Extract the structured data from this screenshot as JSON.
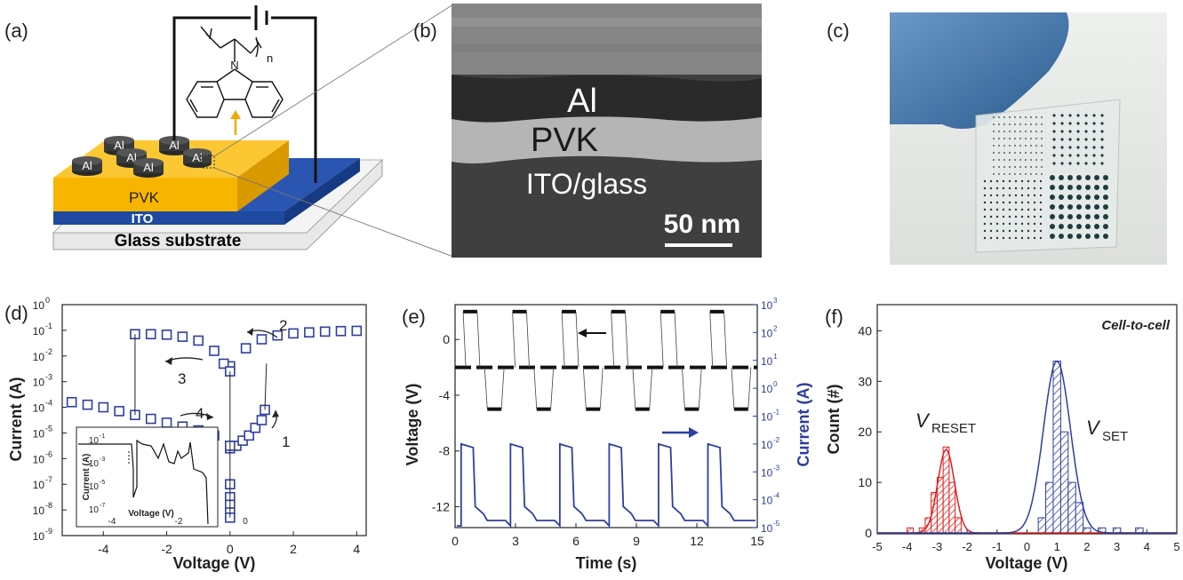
{
  "panels": {
    "a": {
      "label": "(a)",
      "layers": {
        "top_electrode": "Al",
        "active": "PVK",
        "bottom_electrode": "ITO",
        "substrate": "Glass substrate"
      },
      "polymer_subscript": "n",
      "polymer_heteroatom": "N",
      "colors": {
        "pvk": "#f7b500",
        "ito": "#1e4aa0",
        "glass": "#e8e8e8",
        "al": "#3a3a3a",
        "arrow": "#f2a900"
      }
    },
    "b": {
      "label": "(b)",
      "layers": [
        "Al",
        "PVK",
        "ITO/glass"
      ],
      "scale_bar": "50 nm"
    },
    "c": {
      "label": "(c)"
    },
    "d": {
      "label": "(d)",
      "xlabel": "Voltage (V)",
      "ylabel": "Current (A)",
      "xticks": [
        "-4",
        "-2",
        "0",
        "2",
        "4"
      ],
      "yticks": [
        "10",
        "10",
        "10",
        "10",
        "10",
        "10",
        "10",
        "10",
        "10",
        "10"
      ],
      "yexps": [
        "0",
        "-1",
        "-2",
        "-3",
        "-4",
        "-5",
        "-6",
        "-7",
        "-8",
        "-9"
      ],
      "annotations": [
        "1",
        "2",
        "3",
        "4"
      ],
      "inset": {
        "xlabel": "Voltage (V)",
        "ylabel": "Current (A)",
        "xticks": [
          "-4",
          "-2",
          "0"
        ],
        "yticks": [
          "10",
          "10",
          "10",
          "10"
        ],
        "yexps": [
          "-1",
          "-3",
          "-5",
          "-7"
        ]
      }
    },
    "e": {
      "label": "(e)",
      "xlabel": "Time (s)",
      "ylabel_left": "Voltage (V)",
      "ylabel_right": "Current (A)",
      "xticks": [
        "0",
        "3",
        "6",
        "9",
        "12",
        "15"
      ],
      "yticks_left": [
        "0",
        "-4",
        "-8",
        "-12"
      ],
      "yticks_right_base": [
        "10",
        "10",
        "10",
        "10",
        "10",
        "10",
        "10",
        "10",
        "10"
      ],
      "yticks_right_exp": [
        "3",
        "2",
        "1",
        "0",
        "-1",
        "-2",
        "-3",
        "-4",
        "-5"
      ],
      "colors": {
        "current": "#2e3f9e",
        "voltage": "#000000"
      }
    },
    "f": {
      "label": "(f)",
      "title": "Cell-to-cell",
      "xlabel": "Voltage (V)",
      "ylabel": "Count (#)",
      "xticks": [
        "-5",
        "-4",
        "-3",
        "-2",
        "-1",
        "0",
        "1",
        "2",
        "3",
        "4",
        "5"
      ],
      "yticks": [
        "0",
        "10",
        "20",
        "30",
        "40"
      ],
      "label_reset_main": "V",
      "label_reset_sub": "RESET",
      "label_set_main": "V",
      "label_set_sub": "SET",
      "colors": {
        "reset": "#e02020",
        "set": "#2e3f9e"
      }
    }
  },
  "chart_data": [
    {
      "type": "scatter",
      "xlabel": "Voltage (V)",
      "ylabel": "Current (A)",
      "xlim": [
        -5.3,
        4.3
      ],
      "ylim_log10": [
        -9,
        0
      ],
      "series": [
        {
          "name": "",
          "x": [
            0,
            0.2,
            0.4,
            0.6,
            0.8,
            1.0,
            1.1
          ],
          "y_log10": [
            -5.6,
            -5.5,
            -5.3,
            -5.1,
            -4.8,
            -4.5,
            -4.1
          ]
        },
        {
          "x": [
            0,
            0.5,
            1.0,
            1.5,
            2.0,
            2.5,
            3.0,
            3.5,
            4.0
          ],
          "y_log10": [
            -2.4,
            -1.7,
            -1.35,
            -1.2,
            -1.12,
            -1.08,
            -1.05,
            -1.03,
            -1.02
          ]
        },
        {
          "x": [
            -3.0,
            -2.5,
            -2.0,
            -1.5,
            -1.0,
            -0.5,
            -0.2,
            0
          ],
          "y_log10": [
            -1.15,
            -1.15,
            -1.17,
            -1.25,
            -1.4,
            -1.8,
            -2.3,
            -2.6
          ]
        },
        {
          "x": [
            -5.0,
            -4.5,
            -4.0,
            -3.5,
            -3.0,
            -2.5,
            -2.0,
            -1.5,
            -1.0,
            -0.5,
            0
          ],
          "y_log10": [
            -3.8,
            -3.9,
            -4.0,
            -4.15,
            -4.3,
            -4.45,
            -4.6,
            -4.75,
            -4.9,
            -5.1,
            -5.5
          ]
        },
        {
          "x": [
            0,
            0,
            0,
            0,
            0
          ],
          "y_log10": [
            -7.0,
            -7.5,
            -7.8,
            -8.1,
            -8.3
          ]
        }
      ]
    },
    {
      "type": "line",
      "xlabel": "Time (s)",
      "ylabel": "Voltage (V)",
      "ylabel_right": "Current (A)",
      "xlim": [
        0,
        15
      ],
      "ylim": [
        -13.5,
        2.5
      ],
      "ylim_right_log10": [
        -5,
        3
      ],
      "voltage_levels": [
        2.0,
        -2.0,
        -5.0
      ],
      "current_levels_log10": [
        -2.0,
        -4.5
      ]
    },
    {
      "type": "bar",
      "xlabel": "Voltage (V)",
      "ylabel": "Count (#)",
      "xlim": [
        -5,
        5
      ],
      "ylim": [
        0,
        45
      ],
      "series": [
        {
          "name": "V_RESET",
          "bin_centers": [
            -3.9,
            -3.5,
            -3.3,
            -3.1,
            -2.9,
            -2.7,
            -2.5,
            -2.3
          ],
          "counts": [
            1,
            1,
            3,
            8,
            11,
            17,
            10,
            3
          ]
        },
        {
          "name": "V_SET",
          "bin_centers": [
            0.5,
            0.75,
            1.0,
            1.25,
            1.5,
            1.75,
            2.0,
            2.5,
            3.0,
            3.75
          ],
          "counts": [
            3,
            10,
            34,
            20,
            10,
            6,
            1,
            1,
            1,
            1
          ]
        }
      ]
    }
  ]
}
